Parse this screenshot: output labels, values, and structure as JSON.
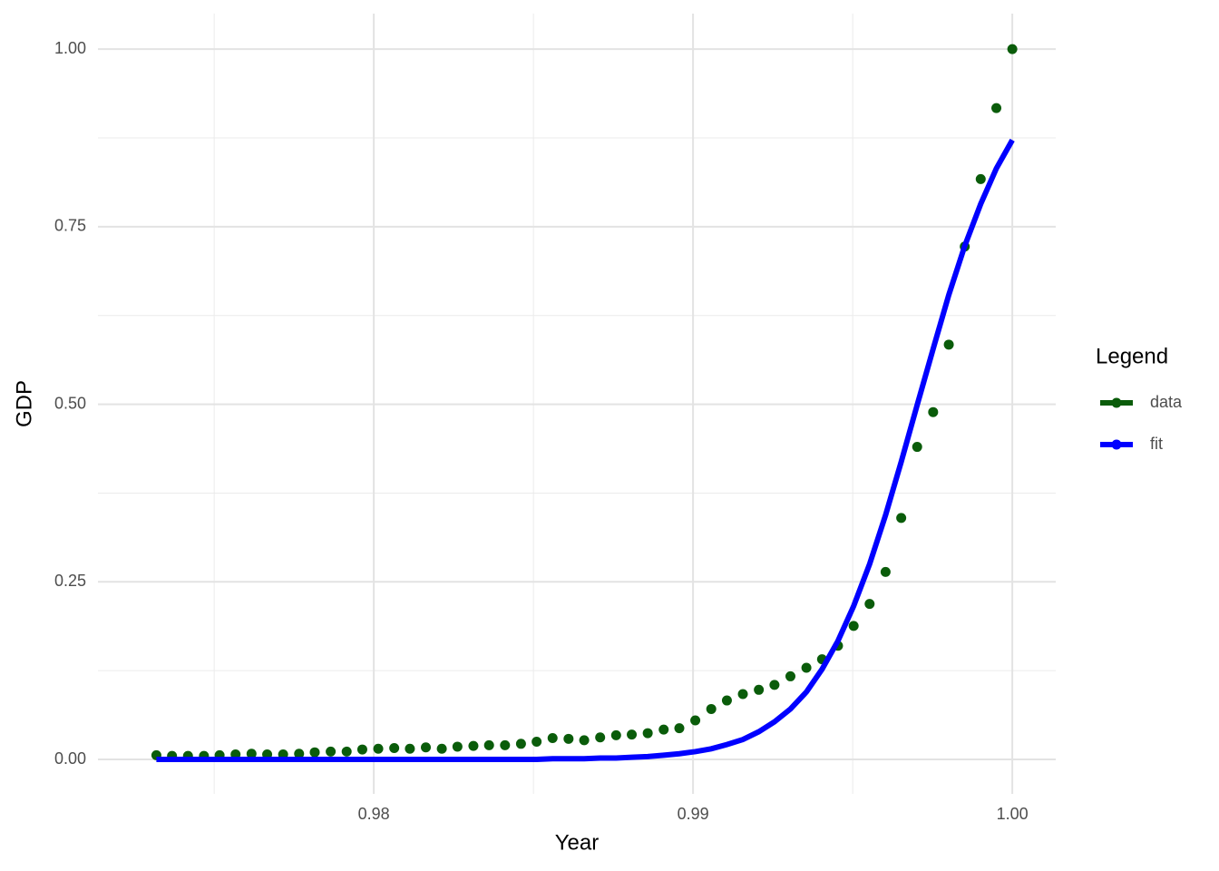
{
  "chart_data": {
    "type": "line",
    "xlabel": "Year",
    "ylabel": "GDP",
    "legend_title": "Legend",
    "legend": "right",
    "xlim": [
      0.97136,
      1.00136
    ],
    "ylim": [
      -0.0485,
      1.05
    ],
    "xticks": [
      0.98,
      0.99,
      {
        "value": 1,
        "label": "1.00"
      }
    ],
    "xminor": [
      0.975,
      0.985,
      0.995
    ],
    "yticks": [
      {
        "value": 0,
        "label": "0.00"
      },
      0.25,
      {
        "value": 0.5,
        "label": "0.50"
      },
      0.75,
      {
        "value": 1,
        "label": "1.00"
      }
    ],
    "yminor": [
      0.125,
      0.375,
      0.625,
      0.875
    ],
    "grid": true,
    "x": [
      0.97319,
      0.97368,
      0.97418,
      0.97468,
      0.97517,
      0.97567,
      0.97617,
      0.97666,
      0.97716,
      0.97766,
      0.97815,
      0.97865,
      0.97915,
      0.97964,
      0.98014,
      0.98064,
      0.98113,
      0.98163,
      0.98213,
      0.98262,
      0.98312,
      0.98361,
      0.98411,
      0.98461,
      0.9851,
      0.9856,
      0.9861,
      0.98659,
      0.98709,
      0.98759,
      0.98808,
      0.98858,
      0.98908,
      0.98957,
      0.99007,
      0.99057,
      0.99106,
      0.99156,
      0.99206,
      0.99255,
      0.99305,
      0.99355,
      0.99404,
      0.99454,
      0.99503,
      0.99553,
      0.99603,
      0.99652,
      0.99702,
      0.99752,
      0.99801,
      0.99851,
      0.99901,
      0.9995,
      1
    ],
    "series": [
      {
        "name": "data",
        "color": "#0a5c0a",
        "style": "points",
        "values": [
          0.006,
          0.005,
          0.005,
          0.005,
          0.006,
          0.007,
          0.008,
          0.007,
          0.007,
          0.008,
          0.01,
          0.011,
          0.011,
          0.014,
          0.015,
          0.016,
          0.015,
          0.017,
          0.015,
          0.018,
          0.019,
          0.02,
          0.02,
          0.022,
          0.025,
          0.03,
          0.029,
          0.027,
          0.031,
          0.034,
          0.035,
          0.037,
          0.042,
          0.044,
          0.055,
          0.071,
          0.083,
          0.092,
          0.098,
          0.105,
          0.117,
          0.129,
          0.141,
          0.16,
          0.188,
          0.219,
          0.264,
          0.34,
          0.44,
          0.489,
          0.584,
          0.722,
          0.817,
          0.917,
          1.0
        ]
      },
      {
        "name": "fit",
        "color": "#0000ff",
        "style": "line",
        "values": [
          0,
          0,
          0,
          0,
          0,
          0,
          0,
          0,
          0,
          0,
          0,
          0,
          0,
          0,
          0,
          0,
          0,
          0,
          0,
          0,
          0,
          0,
          0,
          0,
          0,
          0.001,
          0.001,
          0.001,
          0.002,
          0.002,
          0.003,
          0.004,
          0.006,
          0.008,
          0.011,
          0.015,
          0.021,
          0.028,
          0.039,
          0.053,
          0.071,
          0.095,
          0.127,
          0.167,
          0.216,
          0.275,
          0.344,
          0.419,
          0.499,
          0.578,
          0.654,
          0.723,
          0.782,
          0.832,
          0.872
        ]
      }
    ]
  }
}
